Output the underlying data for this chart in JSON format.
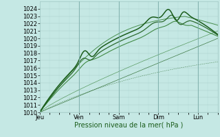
{
  "background_color": "#c5e8e4",
  "plot_bg_color": "#c5e8e4",
  "grid_color": "#a0c8c4",
  "dark_green": "#1a5c1a",
  "mid_green": "#2a7a2a",
  "light_green": "#3a8a3a",
  "ylim": [
    1010,
    1025
  ],
  "ytick_min": 1010,
  "ytick_max": 1024,
  "xlabel": "Pression niveau de la mer( hPa )",
  "day_labels": [
    "Jeu",
    "Ven",
    "Sam",
    "Dim",
    "Lun"
  ],
  "day_positions": [
    0,
    24,
    48,
    72,
    96
  ],
  "total_hours": 108,
  "label_fontsize": 7,
  "tick_fontsize": 6
}
